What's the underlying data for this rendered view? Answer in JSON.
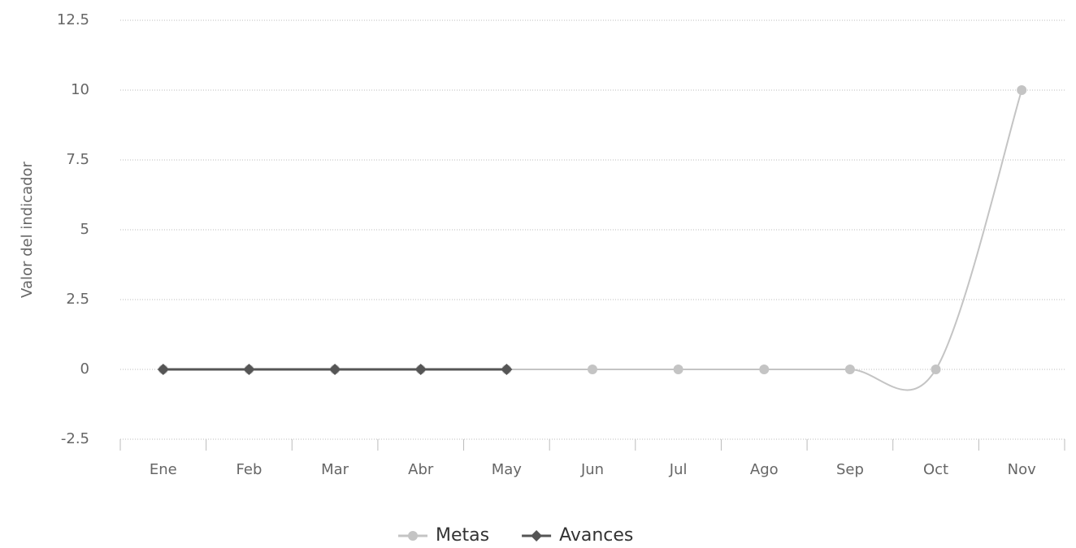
{
  "chart_data": {
    "type": "line",
    "y_label": "Valor del indicador",
    "categories": [
      "Ene",
      "Feb",
      "Mar",
      "Abr",
      "May",
      "Jun",
      "Jul",
      "Ago",
      "Sep",
      "Oct",
      "Nov"
    ],
    "series": [
      {
        "name": "Metas",
        "color": "#c4c4c4",
        "marker": "circle",
        "values": [
          0,
          0,
          0,
          0,
          0,
          0,
          0,
          0,
          0,
          0,
          10
        ]
      },
      {
        "name": "Avances",
        "color": "#555555",
        "marker": "diamond",
        "values": [
          0,
          0,
          0,
          0,
          0,
          null,
          null,
          null,
          null,
          null,
          null
        ]
      }
    ],
    "ylim": [
      -2.5,
      12.5
    ],
    "yticks": [
      -2.5,
      0,
      2.5,
      5,
      7.5,
      10,
      12.5
    ],
    "grid": true,
    "legend": "bottom"
  }
}
